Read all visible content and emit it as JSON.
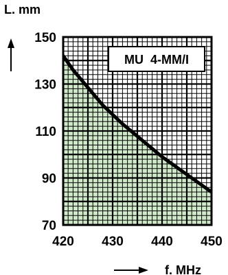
{
  "chart_data": {
    "type": "area",
    "title": "",
    "ylabel": "L. mm",
    "xlabel": "f. MHz",
    "annotation": "MU  4-MM/I",
    "xlim": [
      420,
      450
    ],
    "ylim": [
      70,
      150
    ],
    "x_ticks": [
      "420",
      "430",
      "440",
      "450"
    ],
    "y_ticks": [
      "150",
      "130",
      "110",
      "90",
      "70"
    ],
    "grid": true,
    "fill_color": "#cfe8c8",
    "line_color": "#000000",
    "series": [
      {
        "x": [
          420,
          422,
          424,
          426,
          428,
          430,
          432,
          434,
          436,
          438,
          440,
          442,
          444,
          446,
          448,
          450
        ],
        "values": [
          142,
          136,
          131,
          126,
          121,
          117,
          113,
          109.5,
          106,
          102.5,
          99,
          96,
          93,
          90,
          87,
          84
        ]
      }
    ]
  }
}
